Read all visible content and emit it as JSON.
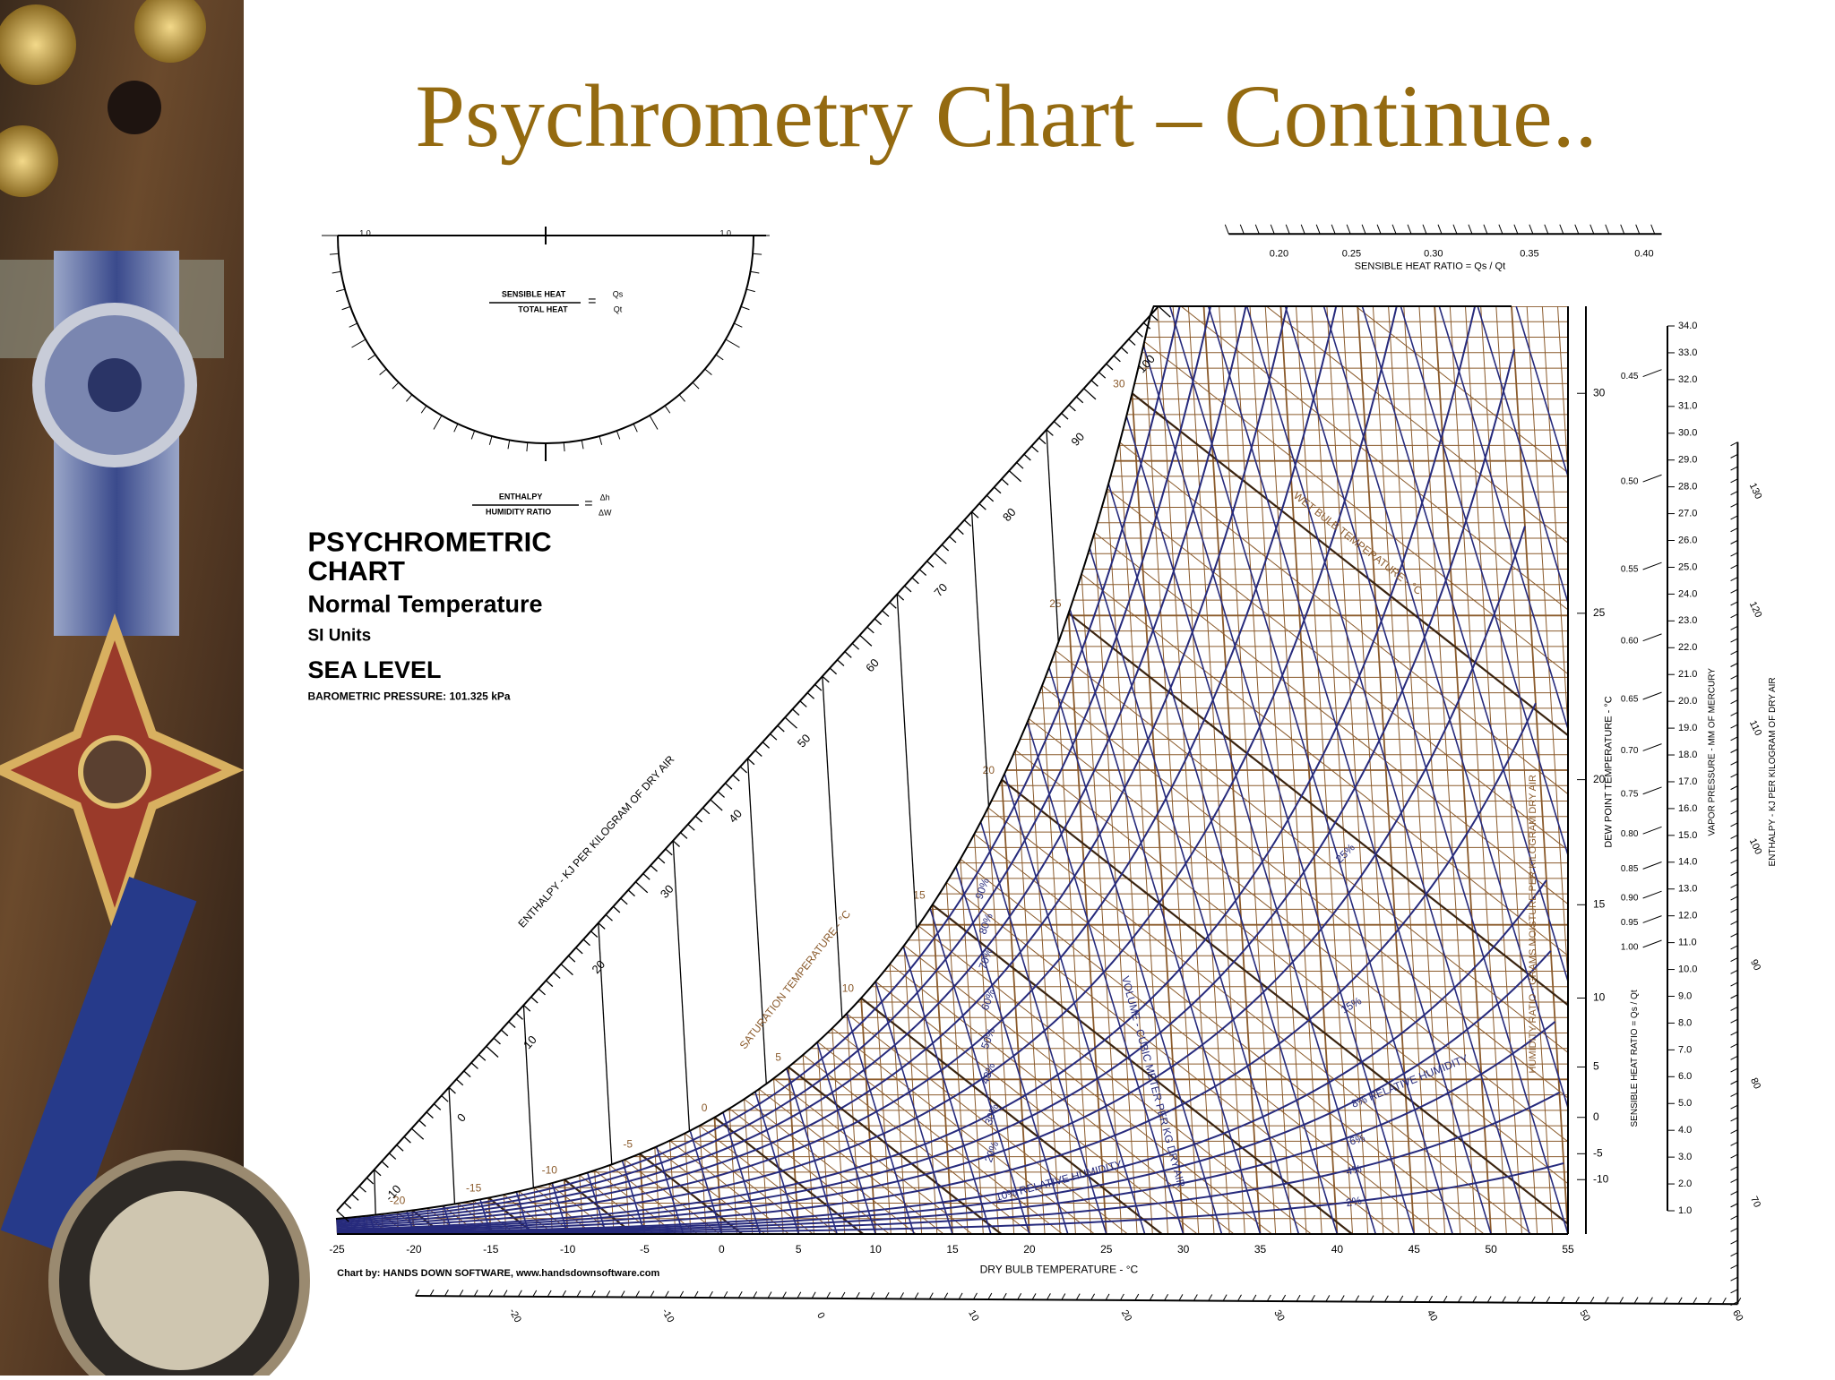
{
  "slide": {
    "title": "Psychrometry Chart – Continue.."
  },
  "chart": {
    "heading": "PSYCHROMETRIC",
    "heading2": "CHART",
    "subheading": "Normal Temperature",
    "units": "SI Units",
    "elevation": "SEA LEVEL",
    "pressure": "BAROMETRIC PRESSURE: 101.325 kPa",
    "credit": "Chart by: HANDS DOWN SOFTWARE, www.handsdownsoftware.com",
    "x_axis_label": "DRY BULB TEMPERATURE - °C",
    "x_ticks": [
      "-25",
      "-20",
      "-15",
      "-10",
      "-5",
      "0",
      "5",
      "10",
      "15",
      "20",
      "25",
      "30",
      "35",
      "40",
      "45",
      "50",
      "55"
    ],
    "enthalpy_label": "ENTHALPY - KJ PER KILOGRAM OF DRY AIR",
    "enthalpy_ticks": [
      "-10",
      "0",
      "10",
      "20",
      "30",
      "40",
      "50",
      "60",
      "70",
      "80",
      "90",
      "100"
    ],
    "saturation_label": "SATURATION TEMPERATURE - °C",
    "saturation_ticks": [
      "-20",
      "-15",
      "-10",
      "-5",
      "0",
      "5",
      "10",
      "15",
      "20",
      "25",
      "30"
    ],
    "shr_label": "SENSIBLE HEAT RATIO = Qs / Qt",
    "shr_ticks": [
      "0.20",
      "0.25",
      "0.30",
      "0.35",
      "0.40"
    ],
    "shr_side_label": "SENSIBLE HEAT RATIO = Qs / Qt",
    "shr_side_ticks": [
      "0.45",
      "0.50",
      "0.55",
      "0.60",
      "0.65",
      "0.70",
      "0.75",
      "0.80",
      "0.85",
      "0.90",
      "0.95",
      "1.00"
    ],
    "dew_point_label": "DEW POINT TEMPERATURE - °C",
    "dew_point_ticks": [
      "30",
      "25",
      "20",
      "15",
      "10",
      "5",
      "0",
      "-5",
      "-10"
    ],
    "vapor_label": "VAPOR PRESSURE - MM OF MERCURY",
    "vapor_ticks": [
      "1.0",
      "2.0",
      "3.0",
      "4.0",
      "5.0",
      "6.0",
      "7.0",
      "8.0",
      "9.0",
      "10.0",
      "11.0",
      "12.0",
      "13.0",
      "14.0",
      "15.0",
      "16.0",
      "17.0",
      "18.0",
      "19.0",
      "20.0",
      "21.0",
      "22.0",
      "23.0",
      "24.0",
      "25.0",
      "26.0",
      "27.0",
      "28.0",
      "29.0",
      "30.0",
      "31.0",
      "32.0",
      "33.0",
      "34.0"
    ],
    "right_enthalpy_label": "ENTHALPY - KJ PER KILOGRAM OF DRY AIR",
    "right_enthalpy_ticks": [
      "130",
      "120",
      "110",
      "100",
      "90",
      "80",
      "70"
    ],
    "bottom_enthalpy_ticks": [
      "-20",
      "-10",
      "0",
      "10",
      "20",
      "30",
      "40",
      "50",
      "60"
    ],
    "wet_bulb_label": "WET BULB TEMPERATURE - °C",
    "volume_label": "VOLUME - CUBIC METER PER KG DRY AIR",
    "humidity_ratio_label": "HUMIDITY RATIO - GRAMS MOISTURE PER KILOGRAM DRY AIR",
    "rh_labels": [
      "10% RELATIVE HUMIDITY",
      "20%",
      "30%",
      "40%",
      "50%",
      "60%",
      "70%",
      "80%",
      "90%"
    ],
    "rh_right_labels": [
      "2%",
      "4%",
      "6%",
      "8% RELATIVE HUMIDITY",
      "15%",
      "25%"
    ],
    "protractor": {
      "ends": [
        "1.0",
        "1.0"
      ],
      "sensible": "SENSIBLE HEAT",
      "total": "TOTAL HEAT",
      "equals": "=",
      "qs": "Qs",
      "qt": "Qt",
      "enthalpy": "ENTHALPY",
      "humidity": "HUMIDITY RATIO",
      "equals2": "=",
      "dh": "Δh",
      "dw": "ΔW"
    }
  }
}
